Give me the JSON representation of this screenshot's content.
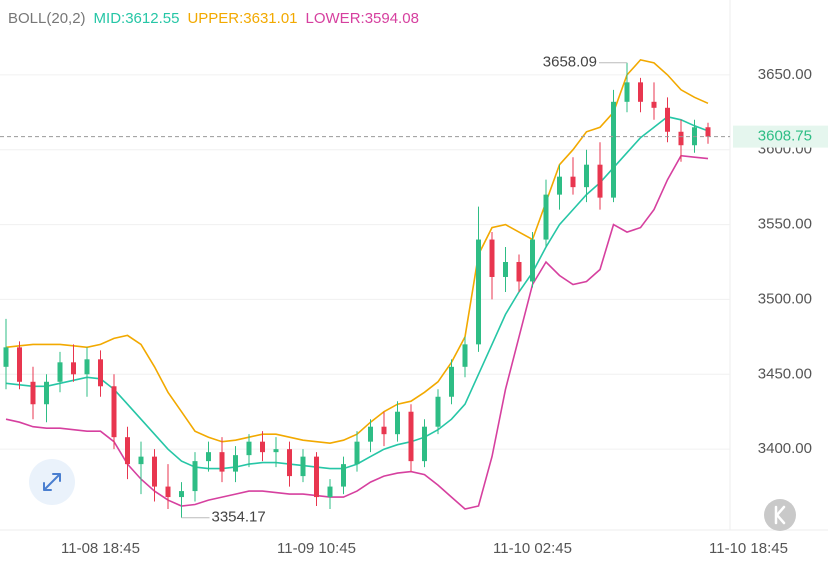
{
  "chart_data": {
    "type": "candlestick",
    "title": "BOLL(20,2)",
    "categories": [
      null,
      null,
      null,
      null,
      null,
      null,
      null,
      "11-08 18:45",
      null,
      null,
      null,
      null,
      null,
      null,
      null,
      null,
      null,
      null,
      null,
      null,
      null,
      null,
      null,
      "11-09 10:45",
      null,
      null,
      null,
      null,
      null,
      null,
      null,
      null,
      null,
      null,
      null,
      null,
      null,
      null,
      null,
      "11-10 02:45",
      null,
      null,
      null,
      null,
      null,
      null,
      null,
      null,
      null,
      null,
      null,
      null,
      null,
      null,
      null,
      "11-10 18:45"
    ],
    "candles": {
      "up_color": "#2ebd85",
      "down_color": "#e8364f",
      "open": [
        3455,
        3468,
        3445,
        3430,
        3445,
        3458,
        3450,
        3460,
        3442,
        3408,
        3390,
        3395,
        3375,
        3368,
        3372,
        3392,
        3398,
        3385,
        3396,
        3405,
        3398,
        3400,
        3382,
        3395,
        3368,
        3375,
        3390,
        3405,
        3415,
        3410,
        3425,
        3392,
        3415,
        3435,
        3455,
        3470,
        3540,
        3515,
        3525,
        3512,
        3540,
        3570,
        3582,
        3575,
        3590,
        3568,
        3632,
        3645,
        3632,
        3628,
        3612,
        3603,
        3615,
        null,
        null,
        null
      ],
      "high": [
        3487,
        3472,
        3455,
        3450,
        3465,
        3470,
        3468,
        3466,
        3450,
        3415,
        3405,
        3400,
        3390,
        3378,
        3398,
        3405,
        3408,
        3402,
        3410,
        3412,
        3408,
        3405,
        3400,
        3398,
        3380,
        3395,
        3412,
        3420,
        3425,
        3432,
        3430,
        3420,
        3440,
        3460,
        3475,
        3562,
        3545,
        3535,
        3530,
        3545,
        3580,
        3590,
        3595,
        3600,
        3605,
        3640,
        3658.09,
        3648,
        3645,
        3635,
        3620,
        3620,
        3618,
        null,
        null,
        null
      ],
      "low": [
        3440,
        3440,
        3420,
        3418,
        3438,
        3445,
        3435,
        3435,
        3400,
        3380,
        3370,
        3365,
        3360,
        3354.17,
        3365,
        3385,
        3378,
        3378,
        3388,
        3392,
        3388,
        3375,
        3378,
        3362,
        3360,
        3370,
        3385,
        3398,
        3402,
        3405,
        3385,
        3388,
        3410,
        3430,
        3448,
        3465,
        3500,
        3505,
        3505,
        3508,
        3535,
        3560,
        3570,
        3565,
        3560,
        3565,
        3625,
        3625,
        3620,
        3605,
        3592,
        3598,
        3604,
        null,
        null,
        null
      ],
      "close": [
        3468,
        3445,
        3430,
        3445,
        3458,
        3450,
        3460,
        3442,
        3408,
        3390,
        3395,
        3375,
        3368,
        3372,
        3392,
        3398,
        3385,
        3396,
        3405,
        3398,
        3400,
        3382,
        3395,
        3368,
        3375,
        3390,
        3405,
        3415,
        3410,
        3425,
        3392,
        3415,
        3435,
        3455,
        3470,
        3540,
        3515,
        3525,
        3512,
        3540,
        3570,
        3582,
        3575,
        3590,
        3568,
        3632,
        3645,
        3632,
        3628,
        3612,
        3603,
        3615,
        3608.75,
        null,
        null,
        null
      ]
    },
    "series": [
      {
        "name": "MID:3612.55",
        "color": "#26c6a6",
        "values": [
          3444,
          3443,
          3442,
          3442,
          3444,
          3446,
          3448,
          3447,
          3440,
          3430,
          3420,
          3410,
          3400,
          3392,
          3388,
          3387,
          3387,
          3388,
          3390,
          3391,
          3391,
          3390,
          3389,
          3388,
          3387,
          3387,
          3390,
          3395,
          3400,
          3403,
          3405,
          3408,
          3413,
          3420,
          3430,
          3450,
          3470,
          3490,
          3505,
          3518,
          3535,
          3550,
          3560,
          3570,
          3578,
          3588,
          3598,
          3608,
          3615,
          3622,
          3620,
          3616,
          3612.55,
          null,
          null,
          null
        ]
      },
      {
        "name": "UPPER:3631.01",
        "color": "#f2a900",
        "values": [
          3468,
          3469,
          3470,
          3470,
          3470,
          3469,
          3468,
          3470,
          3474,
          3476,
          3470,
          3455,
          3438,
          3425,
          3412,
          3408,
          3405,
          3406,
          3408,
          3410,
          3410,
          3408,
          3406,
          3405,
          3404,
          3406,
          3410,
          3418,
          3425,
          3430,
          3432,
          3438,
          3445,
          3458,
          3475,
          3530,
          3548,
          3550,
          3545,
          3540,
          3565,
          3590,
          3600,
          3612,
          3615,
          3625,
          3650,
          3660,
          3658,
          3650,
          3640,
          3635,
          3631.01,
          null,
          null,
          null
        ]
      },
      {
        "name": "LOWER:3594.08",
        "color": "#d6409f",
        "values": [
          3420,
          3418,
          3415,
          3414,
          3414,
          3413,
          3412,
          3412,
          3405,
          3390,
          3380,
          3372,
          3366,
          3362,
          3363,
          3366,
          3368,
          3370,
          3372,
          3372,
          3371,
          3370,
          3370,
          3369,
          3368,
          3368,
          3372,
          3378,
          3382,
          3384,
          3385,
          3383,
          3376,
          3368,
          3360,
          3362,
          3395,
          3440,
          3475,
          3510,
          3525,
          3516,
          3510,
          3512,
          3520,
          3550,
          3545,
          3548,
          3560,
          3580,
          3596,
          3595,
          3594.08,
          null,
          null,
          null
        ]
      }
    ],
    "ylim": [
      3346,
      3700
    ],
    "yticks": [
      {
        "value": 3400,
        "label": "3400.00"
      },
      {
        "value": 3450,
        "label": "3450.00"
      },
      {
        "value": 3500,
        "label": "3500.00"
      },
      {
        "value": 3550,
        "label": "3550.00"
      },
      {
        "value": 3600,
        "label": "3600.00"
      },
      {
        "value": 3650,
        "label": "3650.00"
      }
    ],
    "grid": true
  }
}
